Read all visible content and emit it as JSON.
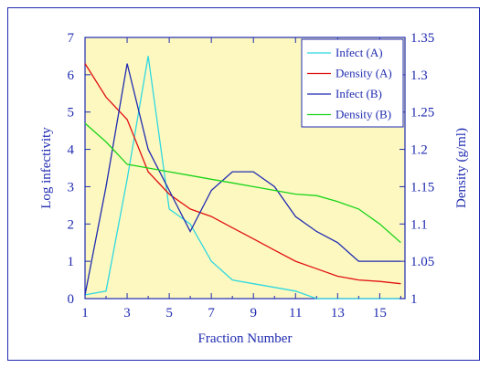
{
  "chart_data": {
    "type": "line",
    "title": "",
    "xlabel": "Fraction Number",
    "ylabel_left": "Log infectivity",
    "ylabel_right": "Density (g/ml)",
    "x_ticks": [
      "1",
      "3",
      "5",
      "7",
      "9",
      "11",
      "13",
      "15"
    ],
    "y_left_ticks": [
      "0",
      "1",
      "2",
      "3",
      "4",
      "5",
      "6",
      "7"
    ],
    "y_right_ticks": [
      "1",
      "1.05",
      "1.1",
      "1.15",
      "1.2",
      "1.25",
      "1.3",
      "1.35"
    ],
    "xlim": [
      1,
      16.2
    ],
    "ylim_left": [
      0,
      7
    ],
    "ylim_right": [
      1,
      1.35
    ],
    "grid": false,
    "plot_background": "#fdf8c0",
    "legend_position": "top-right",
    "series": [
      {
        "name": "Infect (A)",
        "axis": "left",
        "color": "#2fd8e0",
        "x": [
          1,
          2,
          3,
          4,
          5,
          6,
          7,
          8,
          9,
          10,
          11,
          12,
          13,
          14,
          15,
          16
        ],
        "y": [
          0.1,
          0.2,
          3.2,
          6.5,
          2.4,
          2.0,
          1.0,
          0.5,
          0.4,
          0.3,
          0.2,
          0.0,
          0.0,
          0.0,
          0.0,
          0.0
        ]
      },
      {
        "name": "Density (A)",
        "axis": "right",
        "color": "#e01010",
        "x": [
          1,
          2,
          3,
          4,
          5,
          6,
          7,
          8,
          9,
          10,
          11,
          12,
          13,
          14,
          15,
          16
        ],
        "y": [
          1.315,
          1.27,
          1.24,
          1.17,
          1.14,
          1.12,
          1.11,
          1.095,
          1.08,
          1.065,
          1.05,
          1.04,
          1.03,
          1.025,
          1.023,
          1.02
        ]
      },
      {
        "name": "Infect (B)",
        "axis": "left",
        "color": "#1f2bb0",
        "x": [
          1,
          2,
          3,
          4,
          5,
          6,
          7,
          8,
          9,
          10,
          11,
          12,
          13,
          14,
          15,
          16
        ],
        "y": [
          0.1,
          3.0,
          6.3,
          4.0,
          2.9,
          1.8,
          2.9,
          3.4,
          3.4,
          3.0,
          2.2,
          1.8,
          1.5,
          1.0,
          1.0,
          1.0
        ]
      },
      {
        "name": "Density (B)",
        "axis": "right",
        "color": "#19d419",
        "x": [
          1,
          2,
          3,
          4,
          5,
          6,
          7,
          8,
          9,
          10,
          11,
          12,
          13,
          14,
          15,
          16
        ],
        "y": [
          1.235,
          1.21,
          1.18,
          1.175,
          1.17,
          1.165,
          1.16,
          1.155,
          1.15,
          1.145,
          1.14,
          1.138,
          1.13,
          1.12,
          1.1,
          1.075
        ]
      }
    ]
  }
}
